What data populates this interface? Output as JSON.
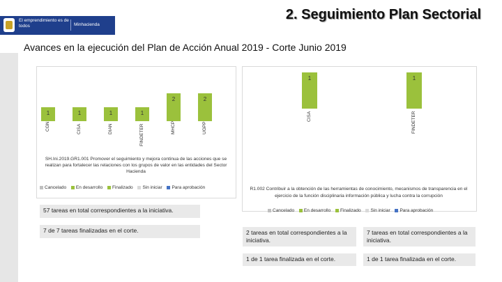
{
  "header": {
    "gov_logo_text": "El emprendimiento es de todos",
    "ministry_text": "Minhacienda",
    "title": "2. Seguimiento Plan Sectorial"
  },
  "subtitle": "Avances en la ejecución del Plan de Acción Anual 2019 - Corte Junio 2019",
  "chart_data": [
    {
      "type": "bar",
      "categories": [
        "CGN",
        "CISA",
        "DIAN",
        "FINDETER",
        "MHCP",
        "UGPP"
      ],
      "values": [
        1,
        1,
        1,
        1,
        2,
        2
      ],
      "description": "SH.Ini.2019.GR1.001 Promover el seguimiento y mejora continua de las acciones que se realizan para fortalecer las relaciones con los grupos de valor en las entidades del Sector Hacienda",
      "legend": [
        "Cancelado",
        "En desarrollo",
        "Finalizado",
        "Sin iniciar",
        "Para aprobación"
      ],
      "colors": [
        "#bfbfbf",
        "#9bc13c",
        "#9bc13c",
        "#d9d9d9",
        "#4472c4"
      ]
    },
    {
      "type": "bar",
      "categories": [
        "CISA",
        "FINDETER"
      ],
      "values": [
        1,
        1
      ],
      "description_line1": "R1.002 Contribuir a la obtención de las herramientas de conocimiento, mecanismos de transparencia en el",
      "description_line2": "ejercicio de la función disciplinaria información pública y lucha contra la corrupción",
      "legend": [
        "Cancelado",
        "En desarrollo",
        "Finalizado",
        "Sin iniciar",
        "Para aprobación"
      ],
      "colors": [
        "#bfbfbf",
        "#9bc13c",
        "#9bc13c",
        "#d9d9d9",
        "#4472c4"
      ]
    }
  ],
  "left_boxes": {
    "total": "57 tareas en total correspondientes a la iniciativa.",
    "done": "7 de 7 tareas finalizadas en el corte."
  },
  "right_boxes": {
    "total_a": "2 tareas en total correspondientes a la iniciativa.",
    "total_b": "7 tareas en total correspondientes a la iniciativa.",
    "done_a": "1 de 1 tarea finalizada en el corte.",
    "done_b": "1 de 1 tarea finalizada en el corte."
  }
}
